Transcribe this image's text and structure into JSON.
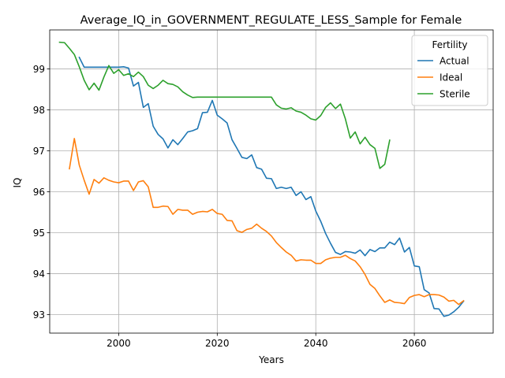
{
  "chart_data": {
    "type": "line",
    "title": "Average_IQ_in_GOVERNMENT_REGULATE_LESS_Sample for Female",
    "xlabel": "Years",
    "ylabel": "IQ",
    "xlim": [
      1986,
      2076
    ],
    "ylim": [
      92.55,
      99.95
    ],
    "xticks": [
      2000,
      2020,
      2040,
      2060
    ],
    "yticks": [
      93,
      94,
      95,
      96,
      97,
      98,
      99
    ],
    "grid": true,
    "legend": {
      "title": "Fertility",
      "position": "upper-right"
    },
    "series": [
      {
        "name": "Actual",
        "color": "#1f77b4",
        "x": [
          1992,
          1993,
          1994,
          1995,
          1996,
          1997,
          1998,
          1999,
          2000,
          2001,
          2002,
          2003,
          2004,
          2005,
          2006,
          2007,
          2008,
          2009,
          2010,
          2011,
          2012,
          2013,
          2014,
          2015,
          2016,
          2017,
          2018,
          2019,
          2020,
          2021,
          2022,
          2023,
          2024,
          2025,
          2026,
          2027,
          2028,
          2029,
          2030,
          2031,
          2032,
          2033,
          2034,
          2035,
          2036,
          2037,
          2038,
          2039,
          2040,
          2041,
          2042,
          2043,
          2044,
          2045,
          2046,
          2047,
          2048,
          2049,
          2050,
          2051,
          2052,
          2053,
          2054,
          2055,
          2056,
          2057,
          2058,
          2059,
          2060,
          2061,
          2062,
          2063,
          2064,
          2065,
          2066,
          2067,
          2068,
          2069,
          2070
        ],
        "y": [
          99.28,
          99.04,
          99.04,
          99.04,
          99.04,
          99.04,
          99.04,
          99.04,
          99.04,
          99.05,
          99.02,
          98.58,
          98.67,
          98.06,
          98.15,
          97.6,
          97.4,
          97.29,
          97.07,
          97.27,
          97.15,
          97.3,
          97.46,
          97.49,
          97.54,
          97.93,
          97.94,
          98.23,
          97.87,
          97.78,
          97.68,
          97.27,
          97.06,
          96.84,
          96.81,
          96.9,
          96.59,
          96.55,
          96.33,
          96.32,
          96.08,
          96.11,
          96.08,
          96.11,
          95.91,
          96.0,
          95.81,
          95.88,
          95.53,
          95.28,
          94.98,
          94.74,
          94.52,
          94.47,
          94.54,
          94.53,
          94.5,
          94.58,
          94.44,
          94.59,
          94.54,
          94.63,
          94.63,
          94.77,
          94.71,
          94.87,
          94.53,
          94.64,
          94.19,
          94.17,
          93.61,
          93.53,
          93.15,
          93.14,
          92.96,
          92.99,
          93.07,
          93.18,
          93.33
        ]
      },
      {
        "name": "Ideal",
        "color": "#ff7f0e",
        "x": [
          1990,
          1991,
          1992,
          1993,
          1994,
          1995,
          1996,
          1997,
          1998,
          1999,
          2000,
          2001,
          2002,
          2003,
          2004,
          2005,
          2006,
          2007,
          2008,
          2009,
          2010,
          2011,
          2012,
          2013,
          2014,
          2015,
          2016,
          2017,
          2018,
          2019,
          2020,
          2021,
          2022,
          2023,
          2024,
          2025,
          2026,
          2027,
          2028,
          2029,
          2030,
          2031,
          2032,
          2033,
          2034,
          2035,
          2036,
          2037,
          2038,
          2039,
          2040,
          2041,
          2042,
          2043,
          2044,
          2045,
          2046,
          2047,
          2048,
          2049,
          2050,
          2051,
          2052,
          2053,
          2054,
          2055,
          2056,
          2057,
          2058,
          2059,
          2060,
          2061,
          2062,
          2063,
          2064,
          2065,
          2066,
          2067,
          2068,
          2069,
          2070
        ],
        "y": [
          96.56,
          97.3,
          96.65,
          96.28,
          95.94,
          96.3,
          96.21,
          96.34,
          96.28,
          96.24,
          96.22,
          96.26,
          96.26,
          96.03,
          96.24,
          96.27,
          96.12,
          95.62,
          95.62,
          95.65,
          95.64,
          95.45,
          95.57,
          95.55,
          95.55,
          95.45,
          95.5,
          95.52,
          95.51,
          95.57,
          95.47,
          95.45,
          95.3,
          95.29,
          95.05,
          95.01,
          95.08,
          95.11,
          95.21,
          95.11,
          95.03,
          94.92,
          94.76,
          94.64,
          94.53,
          94.45,
          94.31,
          94.34,
          94.33,
          94.33,
          94.25,
          94.25,
          94.34,
          94.38,
          94.4,
          94.4,
          94.45,
          94.37,
          94.31,
          94.17,
          93.98,
          93.74,
          93.64,
          93.46,
          93.3,
          93.36,
          93.3,
          93.29,
          93.27,
          93.42,
          93.47,
          93.49,
          93.44,
          93.49,
          93.49,
          93.48,
          93.43,
          93.33,
          93.35,
          93.25,
          93.34
        ]
      },
      {
        "name": "Sterile",
        "color": "#2ca02c",
        "x": [
          1988,
          1989,
          1990,
          1991,
          1992,
          1993,
          1994,
          1995,
          1996,
          1997,
          1998,
          1999,
          2000,
          2001,
          2002,
          2003,
          2004,
          2005,
          2006,
          2007,
          2008,
          2009,
          2010,
          2011,
          2012,
          2013,
          2014,
          2015,
          2016,
          2017,
          2018,
          2019,
          2020,
          2021,
          2022,
          2023,
          2024,
          2025,
          2026,
          2027,
          2028,
          2029,
          2030,
          2031,
          2032,
          2033,
          2034,
          2035,
          2036,
          2037,
          2038,
          2039,
          2040,
          2041,
          2042,
          2043,
          2044,
          2045,
          2046,
          2047,
          2048,
          2049,
          2050,
          2051,
          2052,
          2053,
          2054,
          2055
        ],
        "y": [
          99.65,
          99.64,
          99.5,
          99.35,
          99.05,
          98.72,
          98.49,
          98.65,
          98.48,
          98.8,
          99.08,
          98.89,
          98.98,
          98.84,
          98.88,
          98.81,
          98.92,
          98.81,
          98.6,
          98.52,
          98.6,
          98.72,
          98.64,
          98.62,
          98.56,
          98.44,
          98.36,
          98.3,
          98.31,
          98.31,
          98.31,
          98.31,
          98.31,
          98.31,
          98.31,
          98.31,
          98.31,
          98.31,
          98.31,
          98.31,
          98.31,
          98.31,
          98.31,
          98.31,
          98.12,
          98.04,
          98.02,
          98.05,
          97.97,
          97.94,
          97.87,
          97.78,
          97.75,
          97.86,
          98.06,
          98.17,
          98.03,
          98.14,
          97.78,
          97.31,
          97.46,
          97.17,
          97.33,
          97.15,
          97.06,
          96.57,
          96.67,
          97.26
        ]
      }
    ]
  }
}
